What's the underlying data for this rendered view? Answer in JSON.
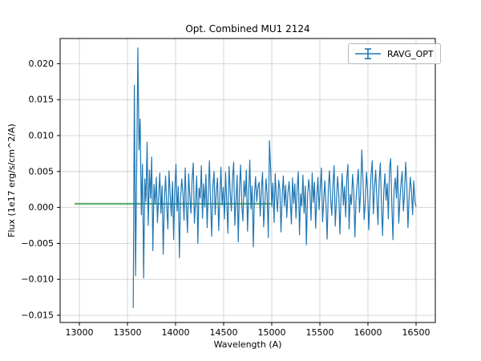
{
  "chart_data": {
    "type": "line",
    "title": "Opt. Combined MU1 2124",
    "xlabel": "Wavelength (A)",
    "ylabel": "Flux (1e17 erg/s/cm^2/A)",
    "xlim": [
      12800,
      16700
    ],
    "ylim": [
      -0.016,
      0.0235
    ],
    "x_ticks": [
      13000,
      13500,
      14000,
      14500,
      15000,
      15500,
      16000,
      16500
    ],
    "y_ticks": [
      -0.015,
      -0.01,
      -0.005,
      0.0,
      0.005,
      0.01,
      0.015,
      0.02
    ],
    "grid": true,
    "legend": {
      "position": "upper right",
      "entries": [
        {
          "label": "RAVG_OPT",
          "color": "#1f77b4",
          "marker": "errorbar"
        }
      ]
    },
    "baseline": {
      "x_start": 12950,
      "x_end": 15000,
      "y": 0.0005,
      "color": "#55a868"
    },
    "series": [
      {
        "name": "RAVG_OPT",
        "color": "#1f77b4",
        "x_start": 13560,
        "x_step": 12,
        "values": [
          -0.014,
          0.017,
          -0.0095,
          0.0055,
          0.0222,
          0.008,
          0.0123,
          -0.001,
          0.006,
          -0.0098,
          0.004,
          0.0008,
          0.0091,
          -0.0025,
          0.0052,
          0.0013,
          0.007,
          -0.006,
          0.0032,
          0.0005,
          0.0042,
          -0.0021,
          0.0015,
          0.0048,
          -0.0008,
          0.003,
          -0.0065,
          0.001,
          0.0044,
          0.0002,
          -0.003,
          0.0051,
          0.0018,
          -0.0012,
          0.0036,
          -0.0045,
          0.0024,
          0.006,
          -0.0005,
          0.0029,
          -0.007,
          0.0012,
          0.004,
          0.0021,
          -0.0018,
          0.0055,
          0.0004,
          -0.0035,
          0.0047,
          0.0016,
          -0.0008,
          0.0038,
          0.0062,
          -0.0022,
          0.0009,
          0.0044,
          -0.005,
          0.0027,
          0.0013,
          0.0058,
          -0.0015,
          0.0033,
          0.0001,
          0.0046,
          -0.0028,
          0.0019,
          0.0065,
          0.0007,
          -0.004,
          0.0031,
          0.005,
          -0.001,
          0.0023,
          0.0041,
          -0.0032,
          0.0014,
          0.0056,
          0.0003,
          0.0028,
          -0.0016,
          0.0049,
          0.001,
          -0.0036,
          0.0057,
          0.0022,
          -0.0005,
          0.0039,
          0.0063,
          -0.0025,
          0.0011,
          0.0045,
          -0.0048,
          0.0026,
          0.0059,
          0.0004,
          -0.0019,
          0.0037,
          0.0015,
          0.0052,
          -0.0033,
          0.002,
          0.0066,
          -0.0002,
          0.003,
          -0.0055,
          0.0017,
          0.0043,
          0.0008,
          0.0029,
          0.0035,
          -0.0012,
          0.0024,
          0.0049,
          -0.0027,
          0.0006,
          0.004,
          0.0018,
          -0.0042,
          0.0093,
          0.0053,
          0.0001,
          0.0034,
          -0.0021,
          0.0047,
          0.0013,
          -0.0006,
          0.0038,
          0.0025,
          -0.0034,
          0.0016,
          0.0044,
          0.0002,
          0.0031,
          -0.0014,
          0.0021,
          0.0036,
          0.0012,
          -0.0023,
          0.0041,
          0.0005,
          0.0033,
          -0.0015,
          0.0027,
          0.005,
          -0.0038,
          0.0019,
          0.0002,
          0.0045,
          -0.0008,
          0.003,
          -0.0052,
          0.0014,
          0.0039,
          0.0023,
          -0.0018,
          0.0048,
          0.0007,
          0.0035,
          -0.0029,
          0.0016,
          0.0042,
          -0.0003,
          0.0026,
          0.0055,
          -0.002,
          0.001,
          0.0037,
          0.0001,
          -0.0044,
          0.0028,
          0.0051,
          0.0013,
          -0.0011,
          0.0032,
          0.0058,
          -0.0026,
          0.0008,
          0.0043,
          0.002,
          -0.0037,
          0.0015,
          0.0047,
          0.0003,
          0.0029,
          -0.0013,
          0.004,
          0.006,
          -0.003,
          0.0018,
          0.0004,
          0.0046,
          0.0024,
          -0.0041,
          0.0011,
          0.0034,
          0.0053,
          -0.0007,
          0.0022,
          0.008,
          0.0038,
          -0.0017,
          0.0006,
          0.0049,
          0.0025,
          -0.0031,
          0.0012,
          0.0044,
          0.0065,
          -0.0009,
          0.0028,
          0.0052,
          0.0015,
          -0.0024,
          0.0036,
          0.0062,
          0.0005,
          -0.0039,
          0.0021,
          0.0047,
          0.001,
          0.0033,
          -0.0016,
          0.0055,
          0.0068,
          0.0002,
          -0.0045,
          0.0026,
          0.0041,
          0.0013,
          0.0058,
          -0.0022,
          0.0009,
          0.0035,
          0.005,
          -0.0005,
          0.0019,
          0.0063,
          0.003,
          -0.0028,
          0.0016,
          0.0042,
          0.0024,
          -0.001,
          0.0037,
          0.0008,
          0.0001
        ]
      }
    ]
  }
}
